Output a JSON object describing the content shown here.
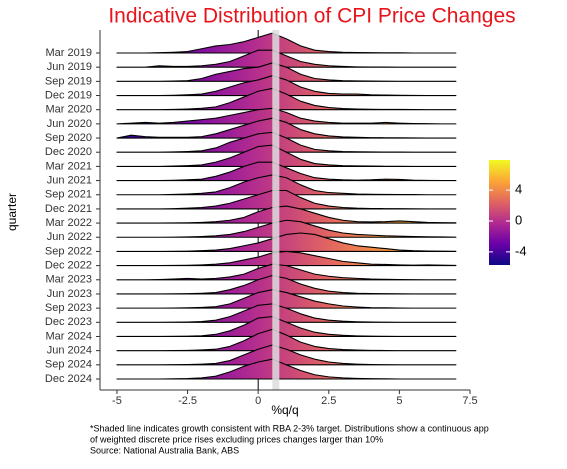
{
  "chart_data": {
    "type": "ridgeline",
    "title": "Indicative Distribution of CPI Price Changes",
    "x_label": "%q/q",
    "y_label": "quarter",
    "footnote": [
      "*Shaded line indicates growth consistent with RBA 2-3% target. Distributions show a continuous app",
      "of weighted discrete price rises excluding prices changes larger than 10%",
      "Source: National Australia Bank, ABS"
    ],
    "xlim": [
      -5.6,
      7.5
    ],
    "xticks": [
      -5,
      -2.5,
      0,
      2.5,
      5,
      7.5
    ],
    "vline": 0,
    "shade": [
      0.5,
      0.75
    ],
    "colorscale": [
      "#0d0887",
      "#6a00a8",
      "#b12a90",
      "#e16462",
      "#fca636",
      "#f0f921"
    ],
    "clim": [
      -5.7,
      7.9
    ],
    "cticks": [
      -4,
      0,
      4
    ],
    "x": [
      -5,
      -4.5,
      -4,
      -3.5,
      -3,
      -2.5,
      -2,
      -1.5,
      -1,
      -0.5,
      0,
      0.5,
      1,
      1.5,
      2,
      2.5,
      3,
      3.5,
      4,
      4.5,
      5,
      5.5,
      6,
      6.5,
      7
    ],
    "series": [
      {
        "name": "Mar 2019",
        "values": [
          0,
          0,
          0,
          0.02,
          0.05,
          0.1,
          0.3,
          0.5,
          0.6,
          0.8,
          1.1,
          1.4,
          1.0,
          0.5,
          0.2,
          0.1,
          0.05,
          0.03,
          0.02,
          0.01,
          0.01,
          0,
          0,
          0,
          0
        ]
      },
      {
        "name": "Jun 2019",
        "values": [
          0,
          0,
          0,
          0.1,
          0.05,
          0.05,
          0.1,
          0.2,
          0.4,
          0.8,
          1.2,
          1.2,
          0.8,
          0.4,
          0.2,
          0.1,
          0.05,
          0.02,
          0.01,
          0.01,
          0,
          0,
          0,
          0,
          0
        ]
      },
      {
        "name": "Sep 2019",
        "values": [
          0,
          0,
          0,
          0,
          0.02,
          0.05,
          0.2,
          0.5,
          0.7,
          0.9,
          1.0,
          1.3,
          1.0,
          0.5,
          0.2,
          0.1,
          0.05,
          0.03,
          0.02,
          0.01,
          0,
          0,
          0,
          0,
          0
        ]
      },
      {
        "name": "Dec 2019",
        "values": [
          0,
          0,
          0,
          0,
          0.02,
          0.05,
          0.1,
          0.3,
          0.6,
          0.9,
          1.1,
          1.4,
          1.1,
          0.6,
          0.3,
          0.15,
          0.1,
          0.1,
          0.05,
          0.03,
          0.02,
          0.01,
          0,
          0,
          0
        ]
      },
      {
        "name": "Mar 2020",
        "values": [
          0,
          0,
          0,
          0,
          0.02,
          0.05,
          0.1,
          0.2,
          0.5,
          0.9,
          1.3,
          1.5,
          1.1,
          0.6,
          0.3,
          0.15,
          0.08,
          0.05,
          0.03,
          0.02,
          0.02,
          0.01,
          0,
          0,
          0
        ]
      },
      {
        "name": "Jun 2020",
        "values": [
          0,
          0.05,
          0.1,
          0.05,
          0.1,
          0.2,
          0.3,
          0.4,
          0.6,
          0.8,
          1.0,
          1.1,
          0.8,
          0.4,
          0.2,
          0.1,
          0.05,
          0.05,
          0.05,
          0.1,
          0.05,
          0.02,
          0.01,
          0,
          0
        ]
      },
      {
        "name": "Sep 2020",
        "values": [
          0,
          0.2,
          0.1,
          0.05,
          0.05,
          0.05,
          0.1,
          0.3,
          0.6,
          0.9,
          1.2,
          1.4,
          1.1,
          0.6,
          0.3,
          0.15,
          0.08,
          0.05,
          0.03,
          0.02,
          0.02,
          0.01,
          0,
          0,
          0
        ]
      },
      {
        "name": "Dec 2020",
        "values": [
          0,
          0,
          0,
          0,
          0.02,
          0.05,
          0.1,
          0.3,
          0.7,
          1.0,
          1.3,
          1.4,
          1.0,
          0.5,
          0.2,
          0.1,
          0.05,
          0.03,
          0.02,
          0.01,
          0.01,
          0,
          0,
          0,
          0
        ]
      },
      {
        "name": "Mar 2021",
        "values": [
          0,
          0,
          0,
          0,
          0.02,
          0.05,
          0.1,
          0.3,
          0.6,
          1.0,
          1.4,
          1.5,
          1.0,
          0.5,
          0.2,
          0.1,
          0.05,
          0.03,
          0.02,
          0.01,
          0.01,
          0,
          0,
          0,
          0
        ]
      },
      {
        "name": "Jun 2021",
        "values": [
          0,
          0,
          0,
          0,
          0.02,
          0.05,
          0.1,
          0.3,
          0.6,
          1.0,
          1.3,
          1.3,
          0.9,
          0.5,
          0.2,
          0.1,
          0.05,
          0.03,
          0.05,
          0.1,
          0.08,
          0.03,
          0.01,
          0,
          0
        ]
      },
      {
        "name": "Sep 2021",
        "values": [
          0,
          0,
          0,
          0,
          0.02,
          0.05,
          0.1,
          0.2,
          0.5,
          0.9,
          1.2,
          1.4,
          1.2,
          0.7,
          0.3,
          0.15,
          0.1,
          0.05,
          0.03,
          0.02,
          0.01,
          0.01,
          0,
          0,
          0
        ]
      },
      {
        "name": "Dec 2021",
        "values": [
          0,
          0,
          0,
          0,
          0.02,
          0.05,
          0.1,
          0.2,
          0.4,
          0.7,
          1.0,
          1.3,
          1.3,
          0.8,
          0.4,
          0.2,
          0.1,
          0.05,
          0.03,
          0.02,
          0.02,
          0.01,
          0,
          0,
          0
        ]
      },
      {
        "name": "Mar 2022",
        "values": [
          0,
          0,
          0,
          0,
          0.01,
          0.02,
          0.05,
          0.1,
          0.2,
          0.4,
          0.8,
          1.1,
          1.2,
          1.0,
          0.7,
          0.4,
          0.2,
          0.1,
          0.08,
          0.1,
          0.15,
          0.1,
          0.05,
          0.03,
          0.02
        ]
      },
      {
        "name": "Jun 2022",
        "values": [
          0,
          0,
          0,
          0,
          0.01,
          0.02,
          0.05,
          0.1,
          0.2,
          0.4,
          0.7,
          1.0,
          1.2,
          1.1,
          0.8,
          0.5,
          0.3,
          0.2,
          0.15,
          0.1,
          0.08,
          0.05,
          0.03,
          0.02,
          0.01
        ]
      },
      {
        "name": "Sep 2022",
        "values": [
          0,
          0,
          0,
          0,
          0.01,
          0.02,
          0.05,
          0.1,
          0.2,
          0.4,
          0.6,
          0.9,
          1.2,
          1.3,
          1.2,
          0.9,
          0.6,
          0.4,
          0.3,
          0.2,
          0.1,
          0.05,
          0.03,
          0.02,
          0.01
        ]
      },
      {
        "name": "Dec 2022",
        "values": [
          0,
          0,
          0,
          0,
          0.01,
          0.02,
          0.05,
          0.1,
          0.2,
          0.4,
          0.6,
          0.9,
          1.0,
          0.9,
          0.7,
          0.5,
          0.3,
          0.2,
          0.1,
          0.08,
          0.05,
          0.03,
          0.05,
          0.03,
          0.01
        ]
      },
      {
        "name": "Mar 2023",
        "values": [
          0,
          0,
          0,
          0.02,
          0.05,
          0.1,
          0.05,
          0.1,
          0.2,
          0.4,
          0.8,
          1.1,
          1.0,
          0.7,
          0.4,
          0.25,
          0.15,
          0.1,
          0.05,
          0.03,
          0.02,
          0.01,
          0,
          0,
          0
        ]
      },
      {
        "name": "Jun 2023",
        "values": [
          0,
          0,
          0,
          0,
          0.01,
          0.02,
          0.05,
          0.1,
          0.3,
          0.6,
          1.0,
          1.3,
          1.1,
          0.7,
          0.4,
          0.2,
          0.1,
          0.05,
          0.03,
          0.02,
          0.01,
          0,
          0,
          0,
          0
        ]
      },
      {
        "name": "Sep 2023",
        "values": [
          0,
          0,
          0,
          0,
          0.01,
          0.02,
          0.05,
          0.1,
          0.3,
          0.7,
          1.1,
          1.3,
          1.1,
          0.8,
          0.5,
          0.3,
          0.15,
          0.08,
          0.03,
          0.02,
          0.01,
          0,
          0,
          0,
          0
        ]
      },
      {
        "name": "Dec 2023",
        "values": [
          0,
          0,
          0,
          0,
          0.01,
          0.02,
          0.05,
          0.15,
          0.4,
          0.8,
          1.2,
          1.3,
          1.0,
          0.6,
          0.3,
          0.15,
          0.08,
          0.04,
          0.02,
          0.01,
          0,
          0,
          0,
          0,
          0
        ]
      },
      {
        "name": "Mar 2024",
        "values": [
          0,
          0,
          0,
          0,
          0.01,
          0.02,
          0.05,
          0.15,
          0.4,
          0.8,
          1.3,
          1.4,
          1.0,
          0.6,
          0.3,
          0.15,
          0.08,
          0.04,
          0.02,
          0.01,
          0,
          0,
          0,
          0,
          0
        ]
      },
      {
        "name": "Jun 2024",
        "values": [
          0,
          0,
          0,
          0,
          0.01,
          0.02,
          0.05,
          0.1,
          0.3,
          0.7,
          1.2,
          1.5,
          1.1,
          0.6,
          0.3,
          0.15,
          0.08,
          0.04,
          0.02,
          0.01,
          0,
          0,
          0,
          0,
          0
        ]
      },
      {
        "name": "Sep 2024",
        "values": [
          0,
          0,
          0,
          0,
          0.01,
          0.02,
          0.05,
          0.1,
          0.3,
          0.7,
          1.1,
          1.4,
          1.1,
          0.7,
          0.4,
          0.2,
          0.1,
          0.05,
          0.02,
          0.01,
          0,
          0,
          0,
          0,
          0
        ]
      },
      {
        "name": "Dec 2024",
        "values": [
          0,
          0,
          0,
          0,
          0.01,
          0.03,
          0.08,
          0.2,
          0.5,
          0.9,
          1.2,
          1.4,
          1.0,
          0.6,
          0.3,
          0.15,
          0.08,
          0.04,
          0.02,
          0.01,
          0,
          0,
          0,
          0,
          0
        ]
      }
    ]
  }
}
